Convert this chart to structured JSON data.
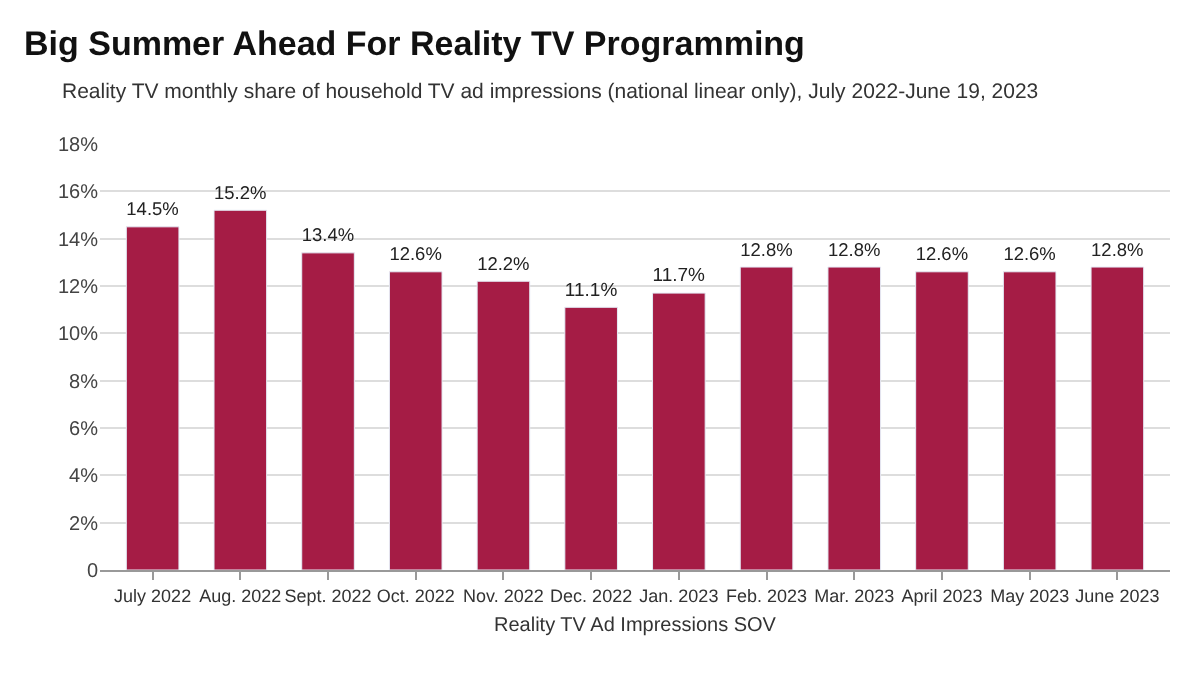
{
  "chart_data": {
    "type": "bar",
    "title": "Big Summer Ahead For Reality TV Programming",
    "subtitle": "Reality TV monthly share of household TV ad impressions (national linear only), July 2022-June 19, 2023",
    "xlabel": "Reality TV Ad Impressions SOV",
    "categories": [
      "July 2022",
      "Aug. 2022",
      "Sept. 2022",
      "Oct. 2022",
      "Nov. 2022",
      "Dec. 2022",
      "Jan. 2023",
      "Feb. 2023",
      "Mar. 2023",
      "April 2023",
      "May 2023",
      "June 2023"
    ],
    "values": [
      14.5,
      15.2,
      13.4,
      12.6,
      12.2,
      11.1,
      11.7,
      12.8,
      12.8,
      12.6,
      12.6,
      12.8
    ],
    "value_labels": [
      "14.5%",
      "15.2%",
      "13.4%",
      "12.6%",
      "12.2%",
      "11.1%",
      "11.7%",
      "12.8%",
      "12.8%",
      "12.6%",
      "12.6%",
      "12.8%"
    ],
    "color": "#a51c45",
    "ylim": [
      0,
      18
    ],
    "yticks": [
      0,
      {
        "value": 2,
        "label": "2%"
      },
      {
        "value": 4,
        "label": "4%"
      },
      {
        "value": 6,
        "label": "6%"
      },
      {
        "value": 8,
        "label": "8%"
      },
      {
        "value": 10,
        "label": "10%"
      },
      {
        "value": 12,
        "label": "12%"
      },
      {
        "value": 14,
        "label": "14%"
      },
      {
        "value": 16,
        "label": "16%"
      },
      {
        "value": 18,
        "label": "18%"
      }
    ],
    "grid": "y"
  }
}
